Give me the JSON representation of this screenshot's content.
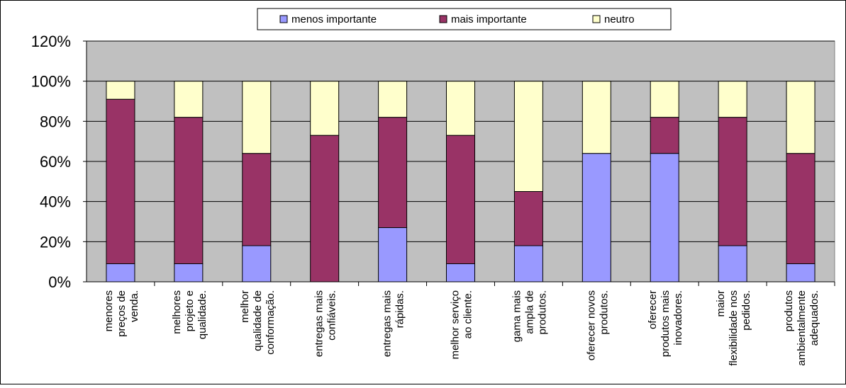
{
  "chart_data": {
    "type": "bar",
    "stacked": true,
    "title": "",
    "xlabel": "",
    "ylabel": "",
    "ylim": [
      0,
      120
    ],
    "yticks": [
      "0%",
      "20%",
      "40%",
      "60%",
      "80%",
      "100%",
      "120%"
    ],
    "grid": "horizontal",
    "legend_position": "top",
    "categories": [
      [
        "menores",
        "preços de",
        "venda."
      ],
      [
        "melhores",
        "projeto e",
        "qualidade."
      ],
      [
        "melhor",
        "qualidade de",
        "conformação."
      ],
      [
        "entregas mais",
        "confiáveis."
      ],
      [
        "entregas mais",
        "rápidas."
      ],
      [
        "melhor serviço",
        "ao cliente."
      ],
      [
        "gama mais",
        "ampla de",
        "produtos."
      ],
      [
        "oferecer novos",
        "produtos."
      ],
      [
        "oferecer",
        "produtos mais",
        "inovadores."
      ],
      [
        "maior",
        "flexibilidade nos",
        "pedidos."
      ],
      [
        "produtos",
        "ambientalmente",
        "adequados."
      ]
    ],
    "series": [
      {
        "name": "menos importante",
        "color": "#9999ff",
        "values": [
          9,
          9,
          18,
          0,
          27,
          9,
          18,
          64,
          64,
          18,
          9
        ]
      },
      {
        "name": "mais importante",
        "color": "#993366",
        "values": [
          82,
          73,
          46,
          73,
          55,
          64,
          27,
          0,
          18,
          64,
          55
        ]
      },
      {
        "name": "neutro",
        "color": "#ffffcc",
        "values": [
          9,
          18,
          36,
          27,
          18,
          27,
          55,
          36,
          18,
          18,
          36
        ]
      }
    ],
    "plot_background": "#c0c0c0"
  }
}
